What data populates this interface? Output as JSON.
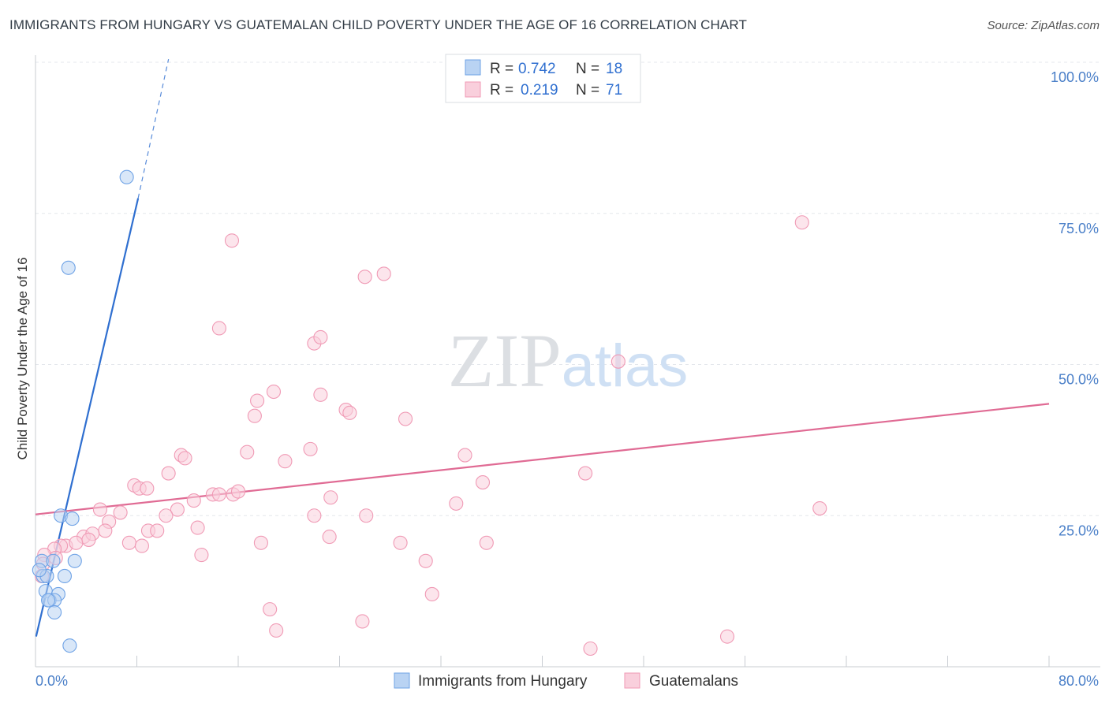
{
  "chart_data": {
    "type": "scatter",
    "title": "IMMIGRANTS FROM HUNGARY VS GUATEMALAN CHILD POVERTY UNDER THE AGE OF 16 CORRELATION CHART",
    "source": "Source: ZipAtlas.com",
    "ylabel": "Child Poverty Under the Age of 16",
    "xlabel": "",
    "x_tick_labels": [
      "0.0%",
      "80.0%"
    ],
    "y_tick_labels": [
      "25.0%",
      "50.0%",
      "75.0%",
      "100.0%"
    ],
    "y_ticks": [
      25,
      50,
      75,
      100
    ],
    "xlim": [
      0,
      80
    ],
    "ylim": [
      0,
      102
    ],
    "watermark": "ZIPatlas",
    "legend": {
      "entries": [
        {
          "r_label": "R =",
          "r_value": "0.742",
          "n_label": "N =",
          "n_value": "18"
        },
        {
          "r_label": "R =",
          "r_value": "0.219",
          "n_label": "N =",
          "n_value": "71"
        }
      ]
    },
    "series": [
      {
        "name": "Immigrants from Hungary",
        "color": "#6fa3e6",
        "fill": "#b9d3f3",
        "line_color": "#2f6fd0",
        "trend": {
          "x0": 0.05,
          "y0": 5.0,
          "x1": 8.1,
          "y1": 77.5,
          "dash_x1": 10.5,
          "dash_y1": 100.5
        },
        "points": [
          [
            7.2,
            81
          ],
          [
            2.6,
            66
          ],
          [
            2.0,
            25
          ],
          [
            2.9,
            24.5
          ],
          [
            0.5,
            17.5
          ],
          [
            1.4,
            17.5
          ],
          [
            3.1,
            17.5
          ],
          [
            0.6,
            15
          ],
          [
            0.9,
            15
          ],
          [
            2.3,
            15
          ],
          [
            0.8,
            12.5
          ],
          [
            1.8,
            12
          ],
          [
            1.1,
            11
          ],
          [
            1.5,
            11
          ],
          [
            1.5,
            9
          ],
          [
            2.7,
            3.5
          ],
          [
            0.3,
            16
          ],
          [
            1.0,
            11
          ]
        ]
      },
      {
        "name": "Guatemalans",
        "color": "#f09ab5",
        "fill": "#f9cfdc",
        "line_color": "#e06b94",
        "trend": {
          "x0": 0,
          "y0": 25.2,
          "x1": 80,
          "y1": 43.5
        },
        "points": [
          [
            60.5,
            73.5
          ],
          [
            15.5,
            70.5
          ],
          [
            26,
            64.5
          ],
          [
            27.5,
            65
          ],
          [
            14.5,
            56
          ],
          [
            22,
            53.5
          ],
          [
            22.5,
            54.5
          ],
          [
            46,
            50.5
          ],
          [
            18.8,
            45.5
          ],
          [
            17.5,
            44
          ],
          [
            22.5,
            45
          ],
          [
            17.3,
            41.5
          ],
          [
            24.5,
            42.5
          ],
          [
            24.8,
            42
          ],
          [
            29.2,
            41
          ],
          [
            11.5,
            35
          ],
          [
            11.8,
            34.5
          ],
          [
            16.7,
            35.5
          ],
          [
            19.7,
            34
          ],
          [
            21.7,
            36
          ],
          [
            33.9,
            35
          ],
          [
            10.5,
            32
          ],
          [
            43.4,
            32
          ],
          [
            7.8,
            30
          ],
          [
            8.2,
            29.5
          ],
          [
            8.8,
            29.5
          ],
          [
            14,
            28.5
          ],
          [
            14.5,
            28.5
          ],
          [
            15.6,
            28.5
          ],
          [
            16,
            29
          ],
          [
            23.3,
            28
          ],
          [
            35.3,
            30.5
          ],
          [
            12.5,
            27.5
          ],
          [
            33.2,
            27
          ],
          [
            5.1,
            26
          ],
          [
            6.7,
            25.5
          ],
          [
            11.2,
            26
          ],
          [
            10.3,
            25
          ],
          [
            22,
            25
          ],
          [
            26.1,
            25
          ],
          [
            61.9,
            26.2
          ],
          [
            5.8,
            24
          ],
          [
            5.5,
            22.5
          ],
          [
            8.9,
            22.5
          ],
          [
            9.6,
            22.5
          ],
          [
            12.8,
            23
          ],
          [
            3.8,
            21.5
          ],
          [
            4.5,
            22
          ],
          [
            2.4,
            20
          ],
          [
            3.2,
            20.5
          ],
          [
            4.2,
            21
          ],
          [
            7.4,
            20.5
          ],
          [
            8.4,
            20
          ],
          [
            17.8,
            20.5
          ],
          [
            23.2,
            21.5
          ],
          [
            28.8,
            20.5
          ],
          [
            35.6,
            20.5
          ],
          [
            2.0,
            20
          ],
          [
            1.5,
            19.5
          ],
          [
            0.7,
            18.5
          ],
          [
            1.6,
            18
          ],
          [
            13.1,
            18.5
          ],
          [
            30.8,
            17.5
          ],
          [
            0.6,
            17
          ],
          [
            0.5,
            15
          ],
          [
            31.3,
            12
          ],
          [
            18.5,
            9.5
          ],
          [
            19,
            6
          ],
          [
            25.8,
            7.5
          ],
          [
            54.6,
            5
          ],
          [
            43.8,
            3
          ]
        ]
      }
    ],
    "bottom_legend": [
      "Immigrants from Hungary",
      "Guatemalans"
    ]
  }
}
